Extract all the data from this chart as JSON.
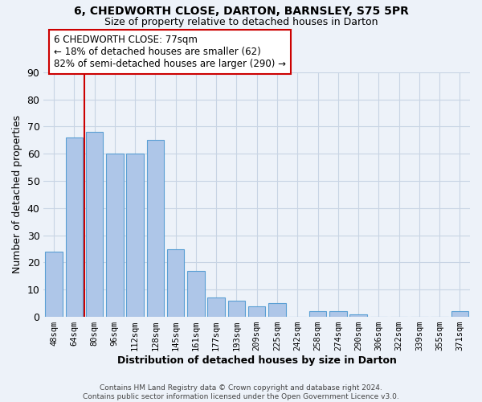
{
  "title1": "6, CHEDWORTH CLOSE, DARTON, BARNSLEY, S75 5PR",
  "title2": "Size of property relative to detached houses in Darton",
  "xlabel": "Distribution of detached houses by size in Darton",
  "ylabel": "Number of detached properties",
  "categories": [
    "48sqm",
    "64sqm",
    "80sqm",
    "96sqm",
    "112sqm",
    "128sqm",
    "145sqm",
    "161sqm",
    "177sqm",
    "193sqm",
    "209sqm",
    "225sqm",
    "242sqm",
    "258sqm",
    "274sqm",
    "290sqm",
    "306sqm",
    "322sqm",
    "339sqm",
    "355sqm",
    "371sqm"
  ],
  "values": [
    24,
    66,
    68,
    60,
    60,
    65,
    25,
    17,
    7,
    6,
    4,
    5,
    0,
    2,
    2,
    1,
    0,
    0,
    0,
    0,
    2
  ],
  "bar_color": "#aec6e8",
  "bar_edge_color": "#5a9fd4",
  "background_color": "#edf2f9",
  "grid_color": "#c8d4e4",
  "vline_x": 1.5,
  "vline_color": "#cc0000",
  "annotation_title": "6 CHEDWORTH CLOSE: 77sqm",
  "annotation_line1": "← 18% of detached houses are smaller (62)",
  "annotation_line2": "82% of semi-detached houses are larger (290) →",
  "annotation_box_color": "#ffffff",
  "annotation_box_edge": "#cc0000",
  "footer1": "Contains HM Land Registry data © Crown copyright and database right 2024.",
  "footer2": "Contains public sector information licensed under the Open Government Licence v3.0.",
  "ylim": [
    0,
    90
  ],
  "yticks": [
    0,
    10,
    20,
    30,
    40,
    50,
    60,
    70,
    80,
    90
  ]
}
